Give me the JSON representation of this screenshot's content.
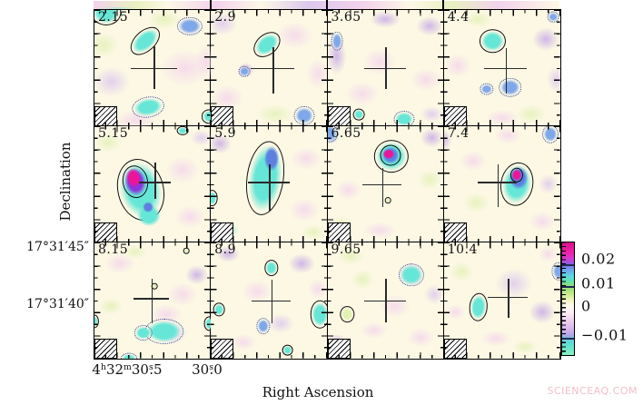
{
  "figure": {
    "watermark": "SCIENCEAQ.COM"
  },
  "chart_data": {
    "type": "heatmap",
    "description": "Grid of 12 spectral-line channel maps with velocity labels, cross marking source position, hatched beam in lower-left of each panel, solid positive and dotted negative contours, and a vertical colorbar.",
    "channel_velocities": [
      2.15,
      2.9,
      3.65,
      4.4,
      5.15,
      5.9,
      6.65,
      7.4,
      8.15,
      8.9,
      9.65,
      10.4
    ],
    "x_axis": {
      "title": "Right Ascension",
      "ticks": [
        {
          "label": "4h32m30.5s",
          "parts": [
            [
              "4",
              "n"
            ],
            [
              "h",
              "u"
            ],
            [
              "32",
              "n"
            ],
            [
              "m",
              "u"
            ],
            [
              "30",
              "n"
            ],
            [
              "s",
              "u"
            ],
            [
              ".",
              "d"
            ],
            [
              "5",
              "n"
            ]
          ]
        },
        {
          "label": "30.0s",
          "parts": [
            [
              "30",
              "n"
            ],
            [
              "s",
              "u"
            ],
            [
              ".",
              "d"
            ],
            [
              "0",
              "n"
            ]
          ]
        }
      ]
    },
    "y_axis": {
      "title": "Declination",
      "tick_labels": [
        "17°31′45″",
        "17°31′40″"
      ]
    },
    "colorbar": {
      "tick_labels": [
        "0.02",
        "0.01",
        "0",
        "−0.01"
      ],
      "tick_values": [
        0.02,
        0.01,
        0,
        -0.01
      ],
      "range_top": 0.026,
      "range_bottom": -0.016,
      "contour_levels_marked": [
        0.02,
        0.01,
        -0.01
      ]
    },
    "palette": {
      "base": "#fcf8e4",
      "pink": "#f4d4ec",
      "lavender": "#dcc6ee",
      "purple": "#c4a6e6",
      "green": "#e2f0b4",
      "cyan": "#66e6d6",
      "blue": "#7fa8ea",
      "deepblue": "#5d7fe0",
      "violet": "#8a35dd",
      "magenta": "#ee1499",
      "contour_pos": "#101010",
      "contour_neg": "#2a3f95",
      "cross": "#2a2a2a"
    },
    "panels": [
      {
        "label": "2.15",
        "cross": [
          51,
          50,
          20,
          19,
          18
        ],
        "washes": [
          [
            78,
            50,
            30,
            22,
            "pink"
          ],
          [
            15,
            62,
            22,
            18,
            "lavender"
          ],
          [
            8,
            30,
            18,
            15,
            "green"
          ],
          [
            60,
            8,
            20,
            12,
            "green"
          ],
          [
            35,
            95,
            25,
            12,
            "pink"
          ],
          [
            96,
            45,
            14,
            20,
            "pink"
          ],
          [
            82,
            14,
            14,
            11,
            "lavender"
          ]
        ],
        "blobs": [
          [
            10,
            2,
            13,
            11,
            0,
            "cyan",
            "s"
          ],
          [
            44,
            27,
            15,
            9,
            -42,
            "cyan",
            "s"
          ],
          [
            82,
            14,
            11,
            8,
            0,
            "blue",
            "d"
          ],
          [
            46,
            84,
            14,
            9,
            -10,
            "cyan",
            "d"
          ],
          [
            99,
            92,
            7,
            6,
            0,
            "cyan",
            "s"
          ]
        ]
      },
      {
        "label": "2.9",
        "cross": [
          53,
          50,
          19,
          18,
          22
        ],
        "washes": [
          [
            10,
            12,
            18,
            14,
            "lavender"
          ],
          [
            72,
            22,
            22,
            16,
            "pink"
          ],
          [
            14,
            76,
            20,
            16,
            "pink"
          ],
          [
            55,
            90,
            22,
            12,
            "green"
          ],
          [
            92,
            55,
            14,
            18,
            "pink"
          ],
          [
            30,
            52,
            10,
            9,
            "purple"
          ]
        ],
        "blobs": [
          [
            48,
            30,
            13,
            9,
            -40,
            "cyan",
            "s"
          ],
          [
            29,
            53,
            5,
            5,
            0,
            "blue",
            "d"
          ],
          [
            80,
            91,
            9,
            8,
            0,
            "blue",
            "d"
          ]
        ]
      },
      {
        "label": "3.65",
        "cross": [
          50,
          50,
          18,
          18,
          18
        ],
        "washes": [
          [
            50,
            8,
            18,
            10,
            "purple"
          ],
          [
            88,
            14,
            16,
            12,
            "purple"
          ],
          [
            8,
            40,
            12,
            22,
            "purple"
          ],
          [
            45,
            45,
            20,
            16,
            "pink"
          ],
          [
            85,
            60,
            18,
            14,
            "pink"
          ],
          [
            30,
            72,
            20,
            14,
            "pink"
          ],
          [
            90,
            90,
            14,
            10,
            "lavender"
          ]
        ],
        "blobs": [
          [
            8,
            27,
            5,
            8,
            0,
            "blue",
            "d"
          ],
          [
            27,
            90,
            5,
            5,
            0,
            "cyan",
            "s"
          ],
          [
            66,
            94,
            9,
            7,
            0,
            "cyan",
            "d"
          ]
        ]
      },
      {
        "label": "4.4",
        "cross": [
          53,
          50,
          18,
          17,
          22
        ],
        "washes": [
          [
            88,
            25,
            16,
            14,
            "purple"
          ],
          [
            12,
            48,
            16,
            14,
            "pink"
          ],
          [
            75,
            90,
            18,
            12,
            "green"
          ],
          [
            30,
            8,
            16,
            10,
            "green"
          ],
          [
            97,
            60,
            12,
            16,
            "lavender"
          ],
          [
            50,
            93,
            20,
            10,
            "pink"
          ],
          [
            12,
            90,
            14,
            10,
            "pink"
          ]
        ],
        "blobs": [
          [
            42,
            27,
            11,
            10,
            0,
            "cyan",
            "s"
          ],
          [
            57,
            67,
            10,
            8,
            0,
            "blue",
            "d"
          ],
          [
            37,
            68,
            6,
            5,
            0,
            "blue",
            "d"
          ],
          [
            94,
            6,
            5,
            5,
            0,
            "blue",
            "d"
          ]
        ]
      },
      {
        "label": "5.15",
        "cross": [
          52,
          48,
          14,
          17,
          15
        ],
        "washes": [
          [
            76,
            38,
            20,
            16,
            "pink"
          ],
          [
            82,
            78,
            18,
            14,
            "pink"
          ],
          [
            12,
            14,
            16,
            12,
            "green"
          ],
          [
            92,
            10,
            13,
            10,
            "lavender"
          ]
        ],
        "blobs": [
          [
            40,
            55,
            20,
            27,
            -14,
            "cyan",
            "s"
          ],
          [
            47,
            77,
            11,
            10,
            0,
            "cyan",
            "n"
          ],
          [
            35,
            48,
            11,
            14,
            -10,
            "violet",
            "s"
          ],
          [
            34,
            45,
            6.5,
            9,
            -10,
            "magenta",
            "n"
          ],
          [
            46,
            70,
            5,
            5,
            0,
            "deepblue",
            "n"
          ],
          [
            76,
            4,
            5,
            4,
            0,
            "cyan",
            "s"
          ]
        ]
      },
      {
        "label": "5.9",
        "cross": [
          50,
          48,
          18,
          15,
          25
        ],
        "washes": [
          [
            8,
            15,
            14,
            12,
            "purple"
          ],
          [
            82,
            28,
            18,
            14,
            "pink"
          ],
          [
            80,
            72,
            18,
            14,
            "pink"
          ],
          [
            88,
            92,
            14,
            9,
            "green"
          ],
          [
            14,
            90,
            14,
            10,
            "cyan"
          ]
        ],
        "blobs": [
          [
            47,
            45,
            16,
            32,
            8,
            "cyan",
            "s"
          ],
          [
            52,
            28,
            7,
            12,
            0,
            "deepblue",
            "n"
          ],
          [
            1,
            62,
            5,
            7,
            0,
            "cyan",
            "s"
          ]
        ]
      },
      {
        "label": "6.65",
        "cross": [
          47,
          50,
          17,
          14,
          20
        ],
        "washes": [
          [
            3,
            8,
            10,
            10,
            "blue"
          ],
          [
            90,
            10,
            14,
            12,
            "purple"
          ],
          [
            18,
            55,
            16,
            12,
            "pink"
          ],
          [
            88,
            46,
            14,
            12,
            "green"
          ],
          [
            45,
            90,
            20,
            10,
            "pink"
          ],
          [
            12,
            85,
            14,
            10,
            "green"
          ]
        ],
        "blobs": [
          [
            2,
            6,
            7,
            8,
            0,
            "blue",
            "d"
          ],
          [
            55,
            26,
            15,
            14,
            0,
            "cyan",
            "s"
          ],
          [
            54,
            25,
            9,
            9,
            0,
            "deepblue",
            "s"
          ],
          [
            53,
            24,
            5.5,
            5,
            0,
            "magenta",
            "n"
          ],
          [
            52,
            64,
            2.6,
            3,
            0,
            "green",
            "s"
          ]
        ]
      },
      {
        "label": "7.4",
        "cross": [
          46,
          48,
          17,
          15,
          22
        ],
        "washes": [
          [
            0,
            12,
            10,
            12,
            "purple"
          ],
          [
            25,
            30,
            16,
            12,
            "pink"
          ],
          [
            28,
            66,
            16,
            12,
            "green"
          ],
          [
            85,
            82,
            16,
            12,
            "pink"
          ],
          [
            55,
            8,
            16,
            10,
            "pink"
          ],
          [
            90,
            50,
            12,
            12,
            "lavender"
          ]
        ],
        "blobs": [
          [
            92,
            7,
            7,
            8,
            0,
            "blue",
            "d"
          ],
          [
            63,
            50,
            14,
            19,
            10,
            "cyan",
            "s"
          ],
          [
            64,
            45,
            9,
            11,
            0,
            "deepblue",
            "n"
          ],
          [
            63,
            42,
            5.5,
            6.5,
            0,
            "magenta",
            "s"
          ]
        ]
      },
      {
        "label": "8.15",
        "cross": [
          49,
          48,
          15,
          17,
          22
        ],
        "washes": [
          [
            22,
            18,
            18,
            12,
            "pink"
          ],
          [
            35,
            8,
            14,
            8,
            "green"
          ],
          [
            76,
            45,
            18,
            14,
            "pink"
          ],
          [
            88,
            28,
            14,
            12,
            "purple"
          ],
          [
            62,
            62,
            20,
            12,
            "pink"
          ],
          [
            14,
            55,
            14,
            10,
            "green"
          ],
          [
            65,
            78,
            22,
            14,
            "lavender"
          ]
        ],
        "blobs": [
          [
            60,
            77,
            17,
            11,
            0,
            "cyan",
            "d"
          ],
          [
            42,
            78,
            8,
            7,
            0,
            "cyan",
            "d"
          ],
          [
            52,
            38,
            2.6,
            2.6,
            0,
            "green",
            "s"
          ],
          [
            79,
            7,
            2.6,
            2.6,
            0,
            "green",
            "s"
          ],
          [
            0,
            68,
            4,
            6,
            0,
            "cyan",
            "s"
          ],
          [
            99,
            70,
            5,
            6,
            0,
            "cyan",
            "s"
          ],
          [
            30,
            100,
            7,
            5,
            0,
            "cyan",
            "d"
          ]
        ]
      },
      {
        "label": "8.9",
        "cross": [
          52,
          50,
          17,
          18,
          20
        ],
        "washes": [
          [
            15,
            10,
            14,
            10,
            "purple"
          ],
          [
            78,
            18,
            16,
            12,
            "purple"
          ],
          [
            40,
            42,
            18,
            14,
            "pink"
          ],
          [
            28,
            86,
            16,
            10,
            "pink"
          ],
          [
            60,
            70,
            16,
            12,
            "lavender"
          ],
          [
            92,
            40,
            12,
            12,
            "pink"
          ]
        ],
        "blobs": [
          [
            52,
            22,
            6,
            7,
            0,
            "cyan",
            "s"
          ],
          [
            45,
            72,
            6,
            7,
            0,
            "blue",
            "d"
          ],
          [
            94,
            62,
            8,
            12,
            0,
            "cyan",
            "s"
          ],
          [
            7,
            58,
            5,
            6,
            0,
            "cyan",
            "s"
          ],
          [
            66,
            93,
            5,
            5,
            0,
            "cyan",
            "s"
          ]
        ]
      },
      {
        "label": "9.65",
        "cross": [
          50,
          50,
          18,
          19,
          19
        ],
        "washes": [
          [
            20,
            12,
            16,
            10,
            "green"
          ],
          [
            30,
            32,
            14,
            12,
            "green"
          ],
          [
            58,
            55,
            18,
            14,
            "pink"
          ],
          [
            80,
            82,
            16,
            12,
            "pink"
          ],
          [
            8,
            86,
            12,
            10,
            "purple"
          ],
          [
            92,
            45,
            12,
            12,
            "lavender"
          ],
          [
            72,
            28,
            15,
            14,
            "blue"
          ],
          [
            40,
            76,
            16,
            10,
            "pink"
          ]
        ],
        "blobs": [
          [
            72,
            28,
            11,
            10,
            0,
            "cyan",
            "d"
          ],
          [
            17,
            62,
            6,
            7,
            0,
            "green",
            "s"
          ]
        ]
      },
      {
        "label": "10.4",
        "cross": [
          55,
          47,
          17,
          16,
          18
        ],
        "washes": [
          [
            60,
            35,
            22,
            18,
            "lavender"
          ],
          [
            85,
            60,
            16,
            14,
            "purple"
          ],
          [
            15,
            25,
            14,
            12,
            "green"
          ],
          [
            45,
            83,
            18,
            10,
            "pink"
          ],
          [
            90,
            10,
            12,
            10,
            "pink"
          ],
          [
            10,
            60,
            12,
            10,
            "pink"
          ],
          [
            70,
            90,
            14,
            8,
            "green"
          ]
        ],
        "blobs": [
          [
            30,
            56,
            8,
            12,
            5,
            "cyan",
            "s"
          ],
          [
            99,
            25,
            6,
            8,
            0,
            "blue",
            "d"
          ]
        ]
      }
    ]
  }
}
